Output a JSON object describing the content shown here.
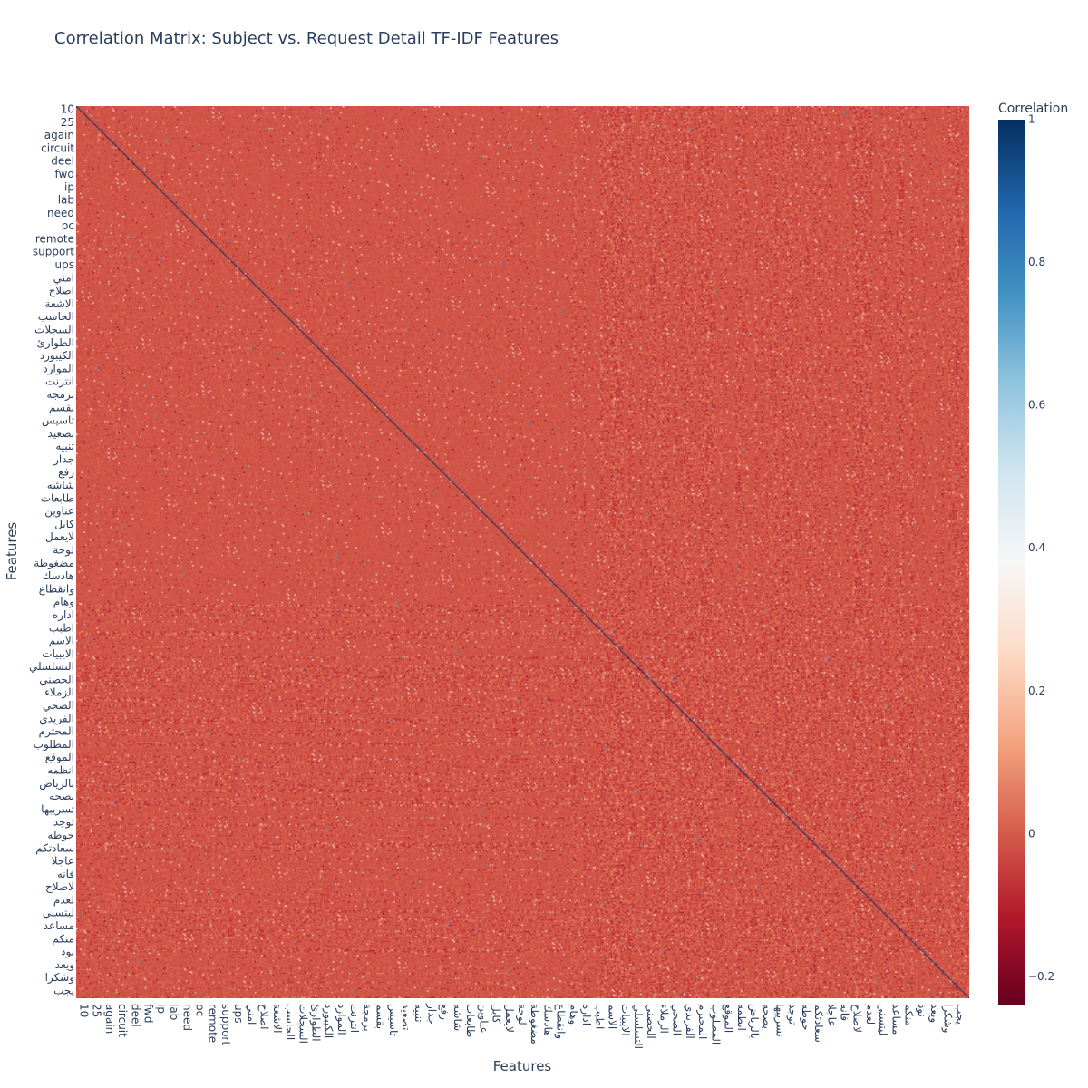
{
  "chart_data": {
    "type": "heatmap",
    "title": "Correlation Matrix: Subject vs. Request Detail TF-IDF Features",
    "xlabel": "Features",
    "ylabel": "Features",
    "colorbar_title": "Correlation",
    "zlim": [
      -0.24,
      1
    ],
    "colorscale": "RdBu",
    "colorscale_stops": [
      "#67001f",
      "#b2182b",
      "#d6604d",
      "#f4a582",
      "#fddbc7",
      "#f7f7f7",
      "#d1e5f0",
      "#92c5de",
      "#4393c3",
      "#2166ac",
      "#053061"
    ],
    "colorbar_ticks": [
      -0.2,
      0,
      0.2,
      0.4,
      0.6,
      0.8,
      1
    ],
    "colorbar_tick_labels": [
      "−0.2",
      "0",
      "0.2",
      "0.4",
      "0.6",
      "0.8",
      "1"
    ],
    "n_features": 700,
    "diagonal_value": 1,
    "typical_off_diagonal_value": -0.01,
    "tick_labels": [
      "10",
      "25",
      "again",
      "circuit",
      "deel",
      "fwd",
      "ip",
      "lab",
      "need",
      "pc",
      "remote",
      "support",
      "ups",
      "امني",
      "اصلاح",
      "الاشعة",
      "الحاسب",
      "السجلات",
      "الطوارئ",
      "الكيبورد",
      "الموارد",
      "انترنت",
      "برمجة",
      "بقسم",
      "تاسيس",
      "تصعيد",
      "تنبيه",
      "جدار",
      "رفع",
      "شاشه",
      "طابعات",
      "عناوين",
      "كابل",
      "لايعمل",
      "لوحة",
      "مضغوطة",
      "هادسك",
      "وانقطاع",
      "وهام",
      "اداره",
      "اطبب",
      "الاسم",
      "الايبيات",
      "التسلسلي",
      "الحصني",
      "الزملاء",
      "الصحي",
      "الفريدي",
      "المحترم",
      "المطلوب",
      "الموقع",
      "انظمه",
      "بالرياض",
      "بصحه",
      "تسريبها",
      "توجد",
      "حوطه",
      "سعادتكم",
      "عاجلا",
      "فانه",
      "لاصلاح",
      "لعدم",
      "ليتسني",
      "مساعد",
      "منكم",
      "نود",
      "ويعد",
      "وشكرا",
      "يجب"
    ]
  }
}
